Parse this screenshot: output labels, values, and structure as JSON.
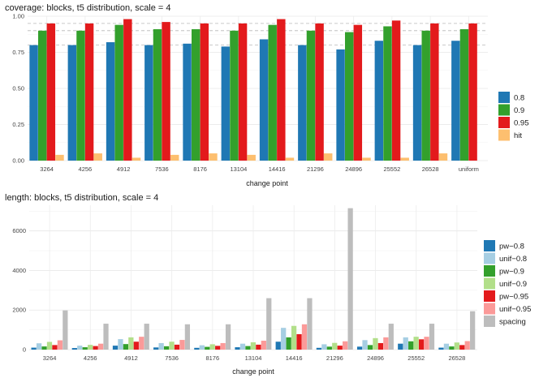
{
  "chart_data": [
    {
      "type": "bar",
      "title": "coverage: blocks, t5 distribution, scale = 4",
      "xlabel": "change point",
      "ylabel": "",
      "categories": [
        "3264",
        "4256",
        "4912",
        "7536",
        "8176",
        "13104",
        "14416",
        "21296",
        "24896",
        "25552",
        "26528",
        "uniform"
      ],
      "ylim": [
        0,
        1.0
      ],
      "yticks": [
        "0.00",
        "0.25",
        "0.50",
        "0.75",
        "1.00"
      ],
      "ytick_values": [
        0,
        0.25,
        0.5,
        0.75,
        1.0
      ],
      "reference_lines": [
        0.8,
        0.9,
        0.95
      ],
      "grid": true,
      "legend_position": "right",
      "series": [
        {
          "name": "0.8",
          "color": "#1f78b4",
          "values": [
            0.8,
            0.8,
            0.82,
            0.8,
            0.81,
            0.79,
            0.84,
            0.8,
            0.77,
            0.83,
            0.8,
            0.83
          ]
        },
        {
          "name": "0.9",
          "color": "#33a02c",
          "values": [
            0.9,
            0.9,
            0.94,
            0.91,
            0.91,
            0.9,
            0.94,
            0.9,
            0.89,
            0.93,
            0.9,
            0.91
          ]
        },
        {
          "name": "0.95",
          "color": "#e31a1c",
          "values": [
            0.95,
            0.95,
            0.98,
            0.96,
            0.95,
            0.95,
            0.98,
            0.95,
            0.94,
            0.97,
            0.95,
            0.95
          ]
        },
        {
          "name": "hit",
          "color": "#fdbf6f",
          "values": [
            0.04,
            0.05,
            0.02,
            0.04,
            0.05,
            0.04,
            0.02,
            0.05,
            0.02,
            0.02,
            0.05,
            0.0
          ]
        }
      ]
    },
    {
      "type": "bar",
      "title": "length: blocks, t5 distribution, scale = 4",
      "xlabel": "change point",
      "ylabel": "",
      "categories": [
        "3264",
        "4256",
        "4912",
        "7536",
        "8176",
        "13104",
        "14416",
        "21296",
        "24896",
        "25552",
        "26528"
      ],
      "ylim": [
        0,
        7300
      ],
      "yticks": [
        "0",
        "2000",
        "4000",
        "6000"
      ],
      "ytick_values": [
        0,
        2000,
        4000,
        6000
      ],
      "grid": true,
      "legend_position": "right",
      "series": [
        {
          "name": "pw−0.8",
          "color": "#1f78b4",
          "values": [
            100,
            80,
            200,
            110,
            90,
            120,
            400,
            90,
            150,
            300,
            100
          ]
        },
        {
          "name": "unif−0.8",
          "color": "#a6cee3",
          "values": [
            320,
            200,
            530,
            330,
            220,
            300,
            1100,
            270,
            480,
            620,
            300
          ]
        },
        {
          "name": "pw−0.9",
          "color": "#33a02c",
          "values": [
            160,
            120,
            280,
            170,
            140,
            180,
            620,
            150,
            230,
            420,
            160
          ]
        },
        {
          "name": "unif−0.9",
          "color": "#b2df8a",
          "values": [
            390,
            240,
            620,
            400,
            270,
            370,
            1200,
            340,
            580,
            650,
            360
          ]
        },
        {
          "name": "pw−0.95",
          "color": "#e31a1c",
          "values": [
            230,
            180,
            400,
            250,
            190,
            250,
            780,
            200,
            330,
            520,
            230
          ]
        },
        {
          "name": "unif−0.95",
          "color": "#fb9a99",
          "values": [
            470,
            300,
            650,
            490,
            330,
            450,
            1280,
            420,
            620,
            650,
            430
          ]
        },
        {
          "name": "spacing",
          "color": "#bdbdbd",
          "values": [
            1980,
            1310,
            1310,
            1280,
            1280,
            2600,
            2600,
            7150,
            1310,
            1310,
            1940
          ]
        }
      ]
    }
  ]
}
